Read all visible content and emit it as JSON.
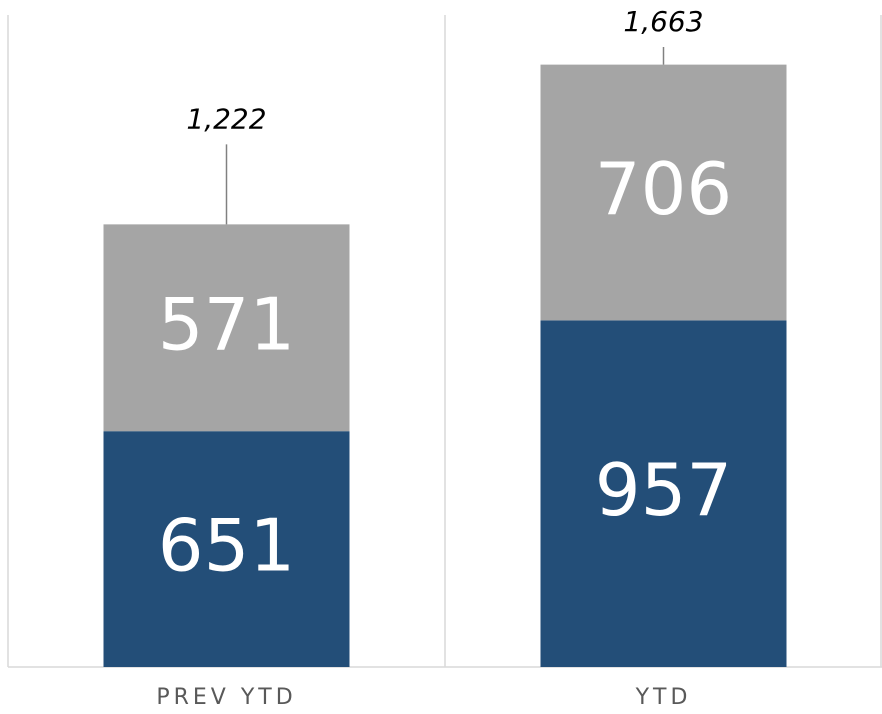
{
  "chart_data": {
    "type": "stacked_bar",
    "categories": [
      "PREV YTD",
      "YTD"
    ],
    "series": [
      {
        "color": "#234e78",
        "values": [
          651,
          957
        ]
      },
      {
        "color": "#a5a5a5",
        "values": [
          571,
          706
        ]
      }
    ],
    "totals": {
      "values": [
        1222,
        1663
      ],
      "value_labels": [
        "1,222",
        "1,663"
      ]
    },
    "ylim": [
      0,
      1800
    ]
  }
}
